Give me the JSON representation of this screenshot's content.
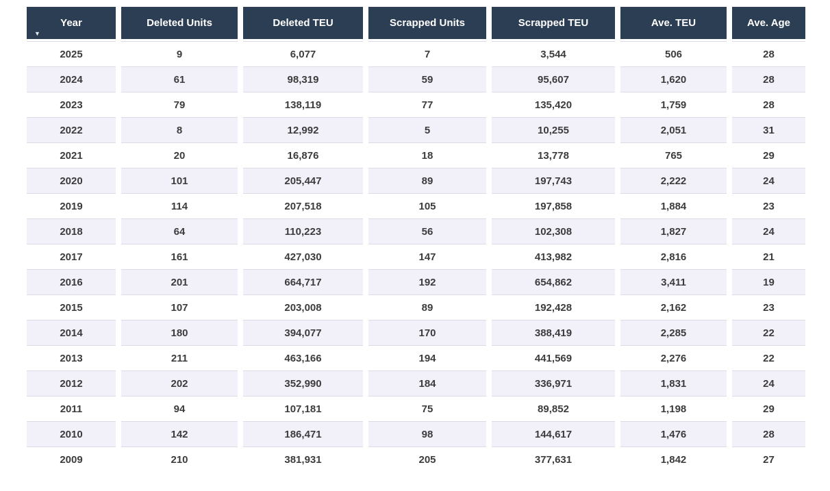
{
  "colors": {
    "header_bg": "#2C3E54",
    "header_text": "#FFFFFF",
    "row_bg": "#FFFFFF",
    "row_alt_bg": "#F2F1FA",
    "row_border": "#DBDAE6",
    "cell_text": "#3C3C3C"
  },
  "icons": {
    "sort_descending": "▼"
  },
  "table": {
    "columns": [
      {
        "label": "Year",
        "sorted": true,
        "sort_direction": "descending"
      },
      {
        "label": "Deleted Units"
      },
      {
        "label": "Deleted TEU"
      },
      {
        "label": "Scrapped Units"
      },
      {
        "label": "Scrapped TEU"
      },
      {
        "label": "Ave. TEU"
      },
      {
        "label": "Ave. Age"
      }
    ],
    "rows": [
      [
        "2025",
        "9",
        "6,077",
        "7",
        "3,544",
        "506",
        "28"
      ],
      [
        "2024",
        "61",
        "98,319",
        "59",
        "95,607",
        "1,620",
        "28"
      ],
      [
        "2023",
        "79",
        "138,119",
        "77",
        "135,420",
        "1,759",
        "28"
      ],
      [
        "2022",
        "8",
        "12,992",
        "5",
        "10,255",
        "2,051",
        "31"
      ],
      [
        "2021",
        "20",
        "16,876",
        "18",
        "13,778",
        "765",
        "29"
      ],
      [
        "2020",
        "101",
        "205,447",
        "89",
        "197,743",
        "2,222",
        "24"
      ],
      [
        "2019",
        "114",
        "207,518",
        "105",
        "197,858",
        "1,884",
        "23"
      ],
      [
        "2018",
        "64",
        "110,223",
        "56",
        "102,308",
        "1,827",
        "24"
      ],
      [
        "2017",
        "161",
        "427,030",
        "147",
        "413,982",
        "2,816",
        "21"
      ],
      [
        "2016",
        "201",
        "664,717",
        "192",
        "654,862",
        "3,411",
        "19"
      ],
      [
        "2015",
        "107",
        "203,008",
        "89",
        "192,428",
        "2,162",
        "23"
      ],
      [
        "2014",
        "180",
        "394,077",
        "170",
        "388,419",
        "2,285",
        "22"
      ],
      [
        "2013",
        "211",
        "463,166",
        "194",
        "441,569",
        "2,276",
        "22"
      ],
      [
        "2012",
        "202",
        "352,990",
        "184",
        "336,971",
        "1,831",
        "24"
      ],
      [
        "2011",
        "94",
        "107,181",
        "75",
        "89,852",
        "1,198",
        "29"
      ],
      [
        "2010",
        "142",
        "186,471",
        "98",
        "144,617",
        "1,476",
        "28"
      ],
      [
        "2009",
        "210",
        "381,931",
        "205",
        "377,631",
        "1,842",
        "27"
      ]
    ]
  },
  "chart_data": {
    "type": "table",
    "title": "",
    "columns": [
      "Year",
      "Deleted Units",
      "Deleted TEU",
      "Scrapped Units",
      "Scrapped TEU",
      "Ave. TEU",
      "Ave. Age"
    ],
    "rows": [
      [
        2025,
        9,
        6077,
        7,
        3544,
        506,
        28
      ],
      [
        2024,
        61,
        98319,
        59,
        95607,
        1620,
        28
      ],
      [
        2023,
        79,
        138119,
        77,
        135420,
        1759,
        28
      ],
      [
        2022,
        8,
        12992,
        5,
        10255,
        2051,
        31
      ],
      [
        2021,
        20,
        16876,
        18,
        13778,
        765,
        29
      ],
      [
        2020,
        101,
        205447,
        89,
        197743,
        2222,
        24
      ],
      [
        2019,
        114,
        207518,
        105,
        197858,
        1884,
        23
      ],
      [
        2018,
        64,
        110223,
        56,
        102308,
        1827,
        24
      ],
      [
        2017,
        161,
        427030,
        147,
        413982,
        2816,
        21
      ],
      [
        2016,
        201,
        664717,
        192,
        654862,
        3411,
        19
      ],
      [
        2015,
        107,
        203008,
        89,
        192428,
        2162,
        23
      ],
      [
        2014,
        180,
        394077,
        170,
        388419,
        2285,
        22
      ],
      [
        2013,
        211,
        463166,
        194,
        441569,
        2276,
        22
      ],
      [
        2012,
        202,
        352990,
        184,
        336971,
        1831,
        24
      ],
      [
        2011,
        94,
        107181,
        75,
        89852,
        1198,
        29
      ],
      [
        2010,
        142,
        186471,
        98,
        144617,
        1476,
        28
      ],
      [
        2009,
        210,
        381931,
        205,
        377631,
        1842,
        27
      ]
    ],
    "sort": {
      "column": "Year",
      "direction": "descending"
    },
    "layout_hints": {
      "header_style": "dark-navy",
      "row_banding": "alternating",
      "alignment": "center"
    }
  }
}
